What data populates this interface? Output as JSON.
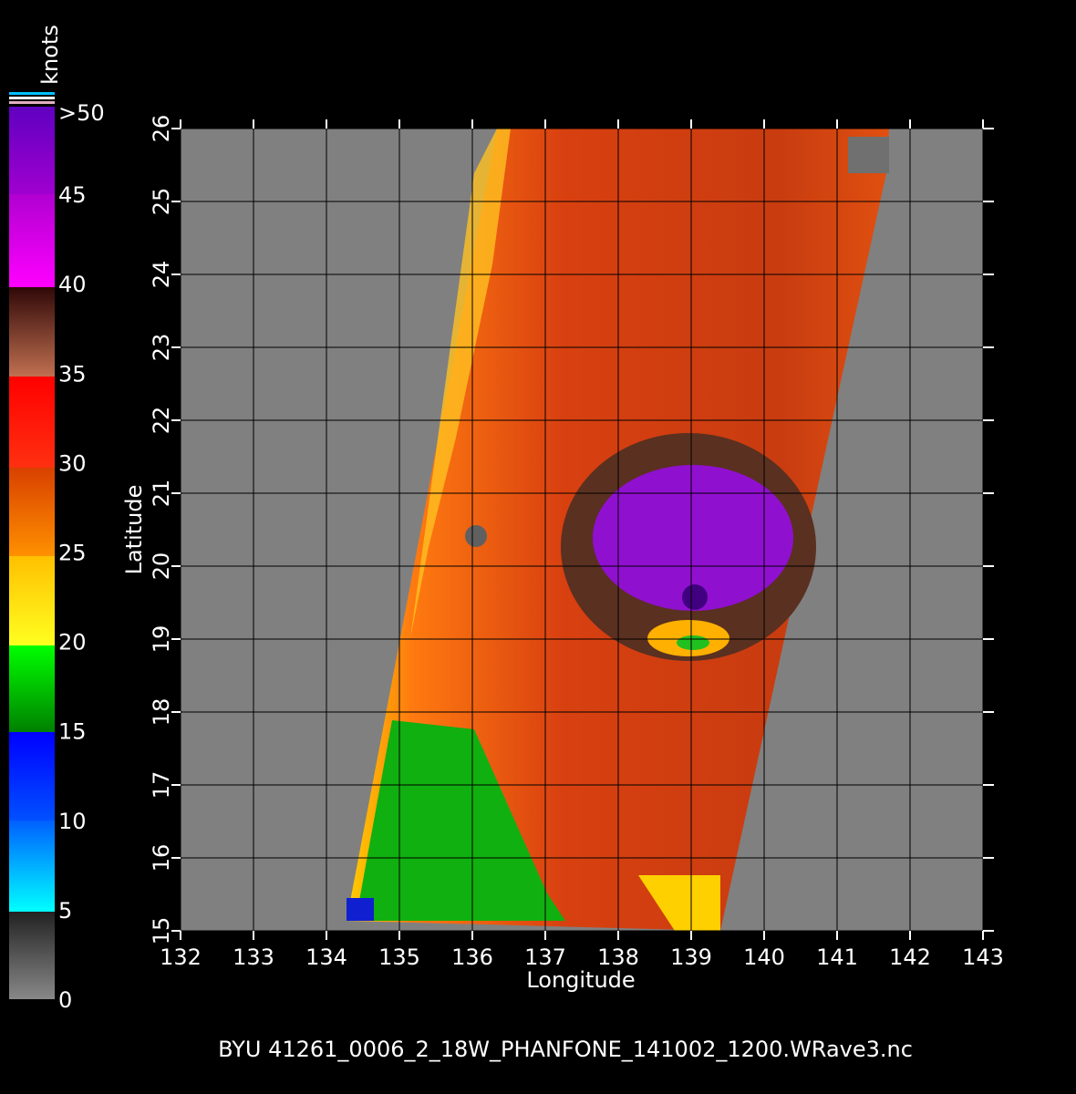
{
  "map": {
    "xlim": [
      132,
      143
    ],
    "ylim": [
      15,
      26
    ],
    "xticks": [
      132,
      133,
      134,
      135,
      136,
      137,
      138,
      139,
      140,
      141,
      142,
      143
    ],
    "yticks": [
      15,
      16,
      17,
      18,
      19,
      20,
      21,
      22,
      23,
      24,
      25,
      26
    ],
    "xlabel": "Longitude",
    "ylabel": "Latitude"
  },
  "colorbar": {
    "unit": "knots",
    "range": [
      0,
      50
    ],
    "ticks": [
      0,
      5,
      10,
      15,
      20,
      25,
      30,
      35,
      40,
      45
    ],
    "top_label": ">50"
  },
  "footer": "BYU 41261_0006_2_18W_PHANFONE_141002_1200.WRave3.nc"
}
